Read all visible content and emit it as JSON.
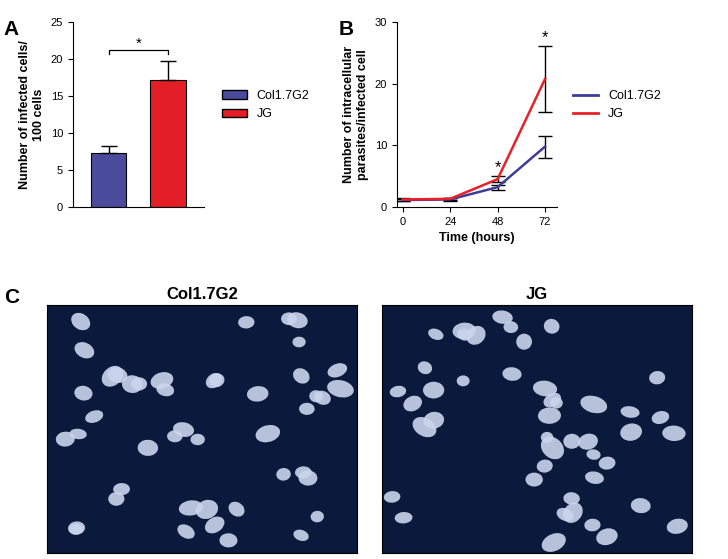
{
  "chart_data": [
    {
      "type": "bar",
      "panel": "A",
      "categories": [
        "Col1.7G2",
        "JG"
      ],
      "values": [
        7.3,
        17.2
      ],
      "errors": [
        1.0,
        2.5
      ],
      "colors": [
        "#4b4b9b",
        "#e41e26"
      ],
      "y_label": "Number of infected cells/\n100 cells",
      "ylim": [
        0,
        25
      ],
      "yticks": [
        0,
        5,
        10,
        15,
        20,
        25
      ],
      "tick_labels": "y",
      "legend": "right",
      "annotations": [
        {
          "text": "*",
          "between": [
            "Col1.7G2",
            "JG"
          ]
        }
      ]
    },
    {
      "type": "line",
      "panel": "B",
      "x": [
        0,
        24,
        48,
        72
      ],
      "series": [
        {
          "name": "Col1.7G2",
          "color": "#3d3d99",
          "values": [
            1.1,
            1.2,
            3.2,
            9.8
          ],
          "errors": [
            0.2,
            0.2,
            0.4,
            1.8
          ]
        },
        {
          "name": "JG",
          "color": "#e8202a",
          "values": [
            1.2,
            1.3,
            4.5,
            20.8
          ],
          "errors": [
            0.2,
            0.2,
            0.5,
            5.3
          ]
        }
      ],
      "x_label": "Time (hours)",
      "y_label": "Number of intracellular\nparasites/infected cell",
      "xlim": [
        -3,
        78
      ],
      "xticks": [
        0,
        24,
        48,
        72
      ],
      "ylim": [
        0,
        30
      ],
      "yticks": [
        0,
        10,
        20,
        30
      ],
      "legend": "right",
      "annotations": [
        {
          "text": "*",
          "x": 48
        },
        {
          "text": "*",
          "x": 72
        }
      ]
    }
  ],
  "images": {
    "panel": "C",
    "titles": [
      "Col1.7G2",
      "JG"
    ]
  }
}
